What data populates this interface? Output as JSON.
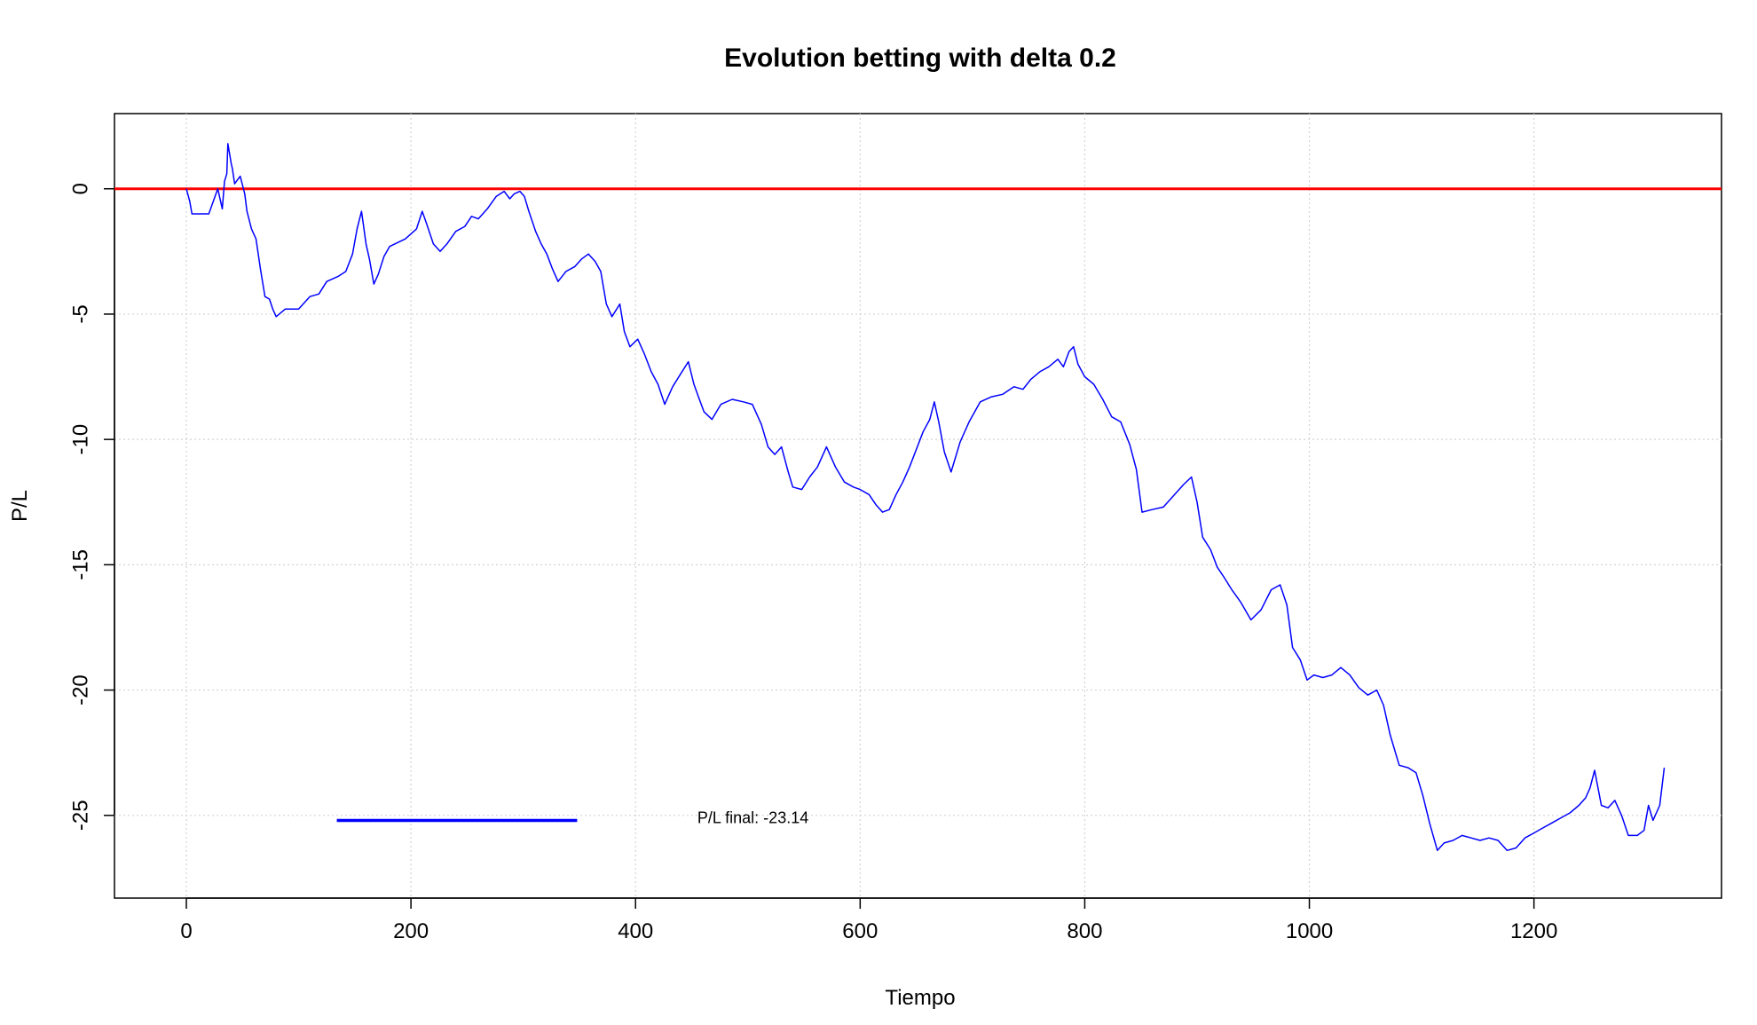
{
  "chart_data": {
    "type": "line",
    "title": "Evolution betting with delta 0.2",
    "xlabel": "Tiempo",
    "ylabel": "P/L",
    "xlim": [
      -64,
      1367
    ],
    "ylim": [
      -28.3,
      3
    ],
    "xticks": [
      0,
      200,
      400,
      600,
      800,
      1000,
      1200
    ],
    "yticks": [
      0,
      -5,
      -10,
      -15,
      -20,
      -25
    ],
    "xtick_labels": [
      "0",
      "200",
      "400",
      "600",
      "800",
      "1000",
      "1200"
    ],
    "ytick_labels": [
      "0",
      "-5",
      "-10",
      "-15",
      "-20",
      "-25"
    ],
    "grid": true,
    "reference_line": {
      "y": 0,
      "color": "#ff0000"
    },
    "series": [
      {
        "color": "#0000ff",
        "points": [
          [
            0,
            0
          ],
          [
            3,
            -0.5
          ],
          [
            5,
            -1
          ],
          [
            20,
            -1
          ],
          [
            28,
            0
          ],
          [
            32,
            -0.8
          ],
          [
            34,
            0.3
          ],
          [
            36,
            0.6
          ],
          [
            37,
            1.8
          ],
          [
            40,
            1
          ],
          [
            41,
            0.8
          ],
          [
            43,
            0.2
          ],
          [
            48,
            0.5
          ],
          [
            52,
            -0.2
          ],
          [
            54,
            -0.9
          ],
          [
            58,
            -1.6
          ],
          [
            62,
            -2
          ],
          [
            66,
            -3.2
          ],
          [
            70,
            -4.3
          ],
          [
            74,
            -4.4
          ],
          [
            77,
            -4.8
          ],
          [
            80,
            -5.1
          ],
          [
            88,
            -4.8
          ],
          [
            100,
            -4.8
          ],
          [
            110,
            -4.3
          ],
          [
            118,
            -4.2
          ],
          [
            125,
            -3.7
          ],
          [
            135,
            -3.5
          ],
          [
            142,
            -3.3
          ],
          [
            148,
            -2.6
          ],
          [
            152,
            -1.6
          ],
          [
            156,
            -0.9
          ],
          [
            160,
            -2.2
          ],
          [
            163,
            -2.8
          ],
          [
            167,
            -3.8
          ],
          [
            171,
            -3.4
          ],
          [
            176,
            -2.7
          ],
          [
            181,
            -2.3
          ],
          [
            195,
            -2
          ],
          [
            205,
            -1.6
          ],
          [
            210,
            -0.9
          ],
          [
            214,
            -1.4
          ],
          [
            220,
            -2.2
          ],
          [
            226,
            -2.5
          ],
          [
            232,
            -2.2
          ],
          [
            240,
            -1.7
          ],
          [
            248,
            -1.5
          ],
          [
            254,
            -1.1
          ],
          [
            260,
            -1.2
          ],
          [
            268,
            -0.8
          ],
          [
            276,
            -0.3
          ],
          [
            283,
            -0.1
          ],
          [
            288,
            -0.4
          ],
          [
            292,
            -0.2
          ],
          [
            297,
            -0.1
          ],
          [
            301,
            -0.3
          ],
          [
            305,
            -0.9
          ],
          [
            311,
            -1.7
          ],
          [
            316,
            -2.2
          ],
          [
            321,
            -2.6
          ],
          [
            326,
            -3.2
          ],
          [
            331,
            -3.7
          ],
          [
            338,
            -3.3
          ],
          [
            346,
            -3.1
          ],
          [
            352,
            -2.8
          ],
          [
            358,
            -2.6
          ],
          [
            364,
            -2.9
          ],
          [
            369,
            -3.3
          ],
          [
            374,
            -4.6
          ],
          [
            379,
            -5.1
          ],
          [
            386,
            -4.6
          ],
          [
            390,
            -5.7
          ],
          [
            395,
            -6.3
          ],
          [
            402,
            -6
          ],
          [
            408,
            -6.6
          ],
          [
            414,
            -7.3
          ],
          [
            420,
            -7.8
          ],
          [
            426,
            -8.6
          ],
          [
            433,
            -7.9
          ],
          [
            440,
            -7.4
          ],
          [
            447,
            -6.9
          ],
          [
            452,
            -7.8
          ],
          [
            456,
            -8.3
          ],
          [
            461,
            -8.9
          ],
          [
            468,
            -9.2
          ],
          [
            476,
            -8.6
          ],
          [
            486,
            -8.4
          ],
          [
            496,
            -8.5
          ],
          [
            504,
            -8.6
          ],
          [
            512,
            -9.4
          ],
          [
            518,
            -10.3
          ],
          [
            524,
            -10.6
          ],
          [
            530,
            -10.3
          ],
          [
            536,
            -11.3
          ],
          [
            540,
            -11.9
          ],
          [
            548,
            -12
          ],
          [
            555,
            -11.5
          ],
          [
            562,
            -11.1
          ],
          [
            570,
            -10.3
          ],
          [
            578,
            -11.1
          ],
          [
            586,
            -11.7
          ],
          [
            594,
            -11.9
          ],
          [
            600,
            -12
          ],
          [
            608,
            -12.2
          ],
          [
            614,
            -12.6
          ],
          [
            620,
            -12.9
          ],
          [
            626,
            -12.8
          ],
          [
            632,
            -12.2
          ],
          [
            638,
            -11.7
          ],
          [
            644,
            -11.1
          ],
          [
            650,
            -10.4
          ],
          [
            656,
            -9.7
          ],
          [
            662,
            -9.2
          ],
          [
            666,
            -8.5
          ],
          [
            670,
            -9.3
          ],
          [
            675,
            -10.5
          ],
          [
            681,
            -11.3
          ],
          [
            689,
            -10.1
          ],
          [
            697,
            -9.3
          ],
          [
            707,
            -8.5
          ],
          [
            717,
            -8.3
          ],
          [
            727,
            -8.2
          ],
          [
            737,
            -7.9
          ],
          [
            745,
            -8
          ],
          [
            752,
            -7.6
          ],
          [
            760,
            -7.3
          ],
          [
            768,
            -7.1
          ],
          [
            776,
            -6.8
          ],
          [
            781,
            -7.1
          ],
          [
            786,
            -6.5
          ],
          [
            790,
            -6.3
          ],
          [
            794,
            -7
          ],
          [
            800,
            -7.5
          ],
          [
            808,
            -7.8
          ],
          [
            816,
            -8.4
          ],
          [
            824,
            -9.1
          ],
          [
            832,
            -9.3
          ],
          [
            840,
            -10.2
          ],
          [
            846,
            -11.2
          ],
          [
            851,
            -12.9
          ],
          [
            860,
            -12.8
          ],
          [
            870,
            -12.7
          ],
          [
            880,
            -12.2
          ],
          [
            888,
            -11.8
          ],
          [
            895,
            -11.5
          ],
          [
            900,
            -12.5
          ],
          [
            905,
            -13.9
          ],
          [
            912,
            -14.4
          ],
          [
            918,
            -15.1
          ],
          [
            924,
            -15.5
          ],
          [
            931,
            -16
          ],
          [
            939,
            -16.5
          ],
          [
            948,
            -17.2
          ],
          [
            957,
            -16.8
          ],
          [
            966,
            -16
          ],
          [
            974,
            -15.8
          ],
          [
            980,
            -16.6
          ],
          [
            985,
            -18.3
          ],
          [
            992,
            -18.8
          ],
          [
            998,
            -19.6
          ],
          [
            1004,
            -19.4
          ],
          [
            1012,
            -19.5
          ],
          [
            1020,
            -19.4
          ],
          [
            1028,
            -19.1
          ],
          [
            1036,
            -19.4
          ],
          [
            1044,
            -19.9
          ],
          [
            1052,
            -20.2
          ],
          [
            1060,
            -20
          ],
          [
            1066,
            -20.6
          ],
          [
            1072,
            -21.8
          ],
          [
            1080,
            -23
          ],
          [
            1088,
            -23.1
          ],
          [
            1095,
            -23.3
          ],
          [
            1101,
            -24.2
          ],
          [
            1107,
            -25.3
          ],
          [
            1114,
            -26.4
          ],
          [
            1120,
            -26.1
          ],
          [
            1128,
            -26
          ],
          [
            1136,
            -25.8
          ],
          [
            1144,
            -25.9
          ],
          [
            1152,
            -26
          ],
          [
            1160,
            -25.9
          ],
          [
            1168,
            -26
          ],
          [
            1176,
            -26.4
          ],
          [
            1184,
            -26.3
          ],
          [
            1192,
            -25.9
          ],
          [
            1200,
            -25.7
          ],
          [
            1208,
            -25.5
          ],
          [
            1216,
            -25.3
          ],
          [
            1224,
            -25.1
          ],
          [
            1232,
            -24.9
          ],
          [
            1240,
            -24.6
          ],
          [
            1246,
            -24.3
          ],
          [
            1250,
            -23.9
          ],
          [
            1254,
            -23.2
          ],
          [
            1260,
            -24.6
          ],
          [
            1266,
            -24.7
          ],
          [
            1272,
            -24.4
          ],
          [
            1278,
            -25
          ],
          [
            1284,
            -25.8
          ],
          [
            1292,
            -25.8
          ],
          [
            1298,
            -25.6
          ],
          [
            1302,
            -24.6
          ],
          [
            1306,
            -25.2
          ],
          [
            1312,
            -24.6
          ],
          [
            1316,
            -23.1
          ]
        ]
      }
    ],
    "legend_sample": {
      "color": "#0000ff",
      "x": [
        134,
        348
      ],
      "y": -25.2
    },
    "annotation": {
      "text": "P/L final: -23.14",
      "x": 455,
      "y": -25.3
    }
  }
}
